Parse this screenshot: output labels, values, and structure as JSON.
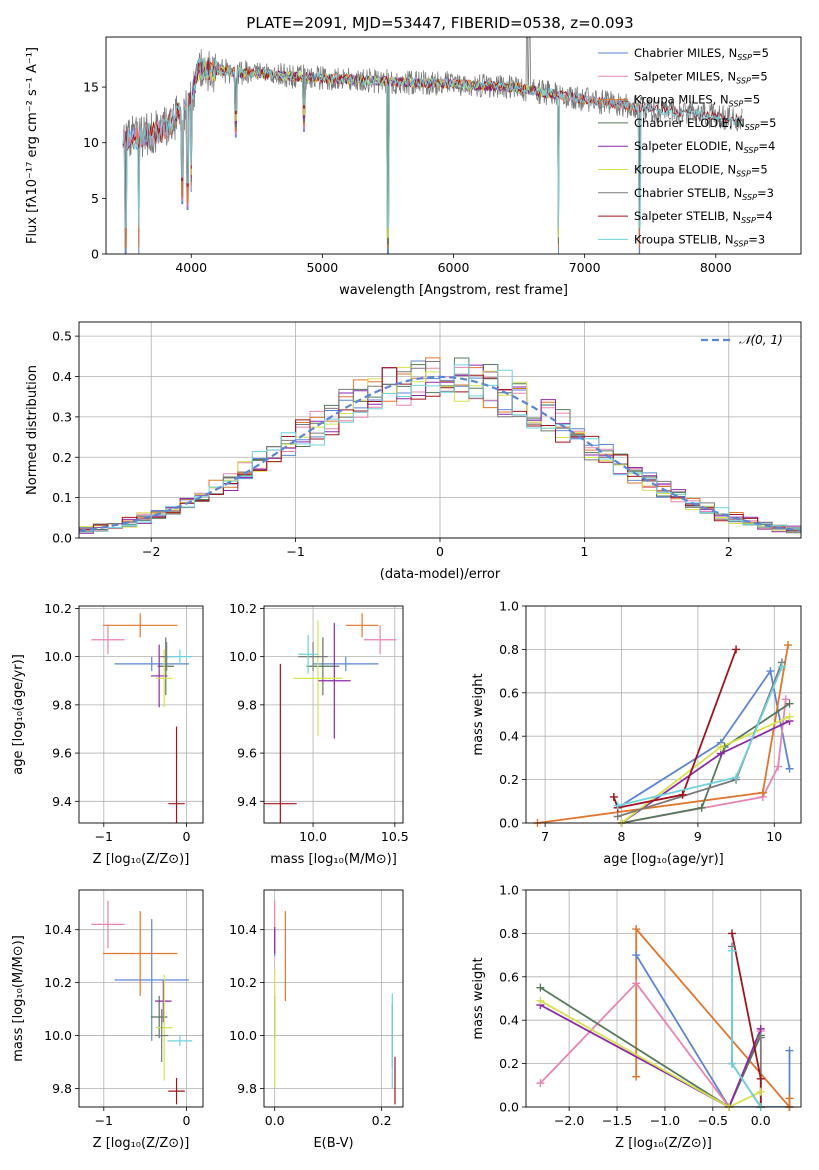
{
  "figure": {
    "title": "PLATE=2091, MJD=53447, FIBERID=0538, z=0.093"
  },
  "colors": {
    "Chabrier MILES": "#5b86d6",
    "Salpeter MILES": "#e983b3",
    "Kroupa MILES": "#e0762a",
    "Chabrier ELODIE": "#557a5c",
    "Salpeter ELODIE": "#8d2aa8",
    "Kroupa ELODIE": "#d5e24a",
    "Chabrier STELIB": "#7a7a7a",
    "Salpeter STELIB": "#a0141e",
    "Kroupa STELIB": "#6fd3de",
    "normal": "#5b86d6"
  },
  "chart_data": [
    {
      "id": "spectrum",
      "type": "line",
      "xlabel": "wavelength [Angstrom, rest frame]",
      "ylabel": "Flux [fλ10⁻¹⁷ erg cm⁻² s⁻¹ A⁻¹]",
      "xlim": [
        3350,
        8650
      ],
      "ylim": [
        0,
        19.5
      ],
      "xticks": [
        4000,
        5000,
        6000,
        7000,
        8000
      ],
      "yticks": [
        0,
        5,
        10,
        15
      ],
      "legend": [
        {
          "base": "Chabrier MILES, N",
          "sub": "SSP",
          "tail": "=5"
        },
        {
          "base": "Salpeter MILES, N",
          "sub": "SSP",
          "tail": "=5"
        },
        {
          "base": "Kroupa MILES, N",
          "sub": "SSP",
          "tail": "=5"
        },
        {
          "base": "Chabrier ELODIE, N",
          "sub": "SSP",
          "tail": "=5"
        },
        {
          "base": "Salpeter ELODIE, N",
          "sub": "SSP",
          "tail": "=4"
        },
        {
          "base": "Kroupa ELODIE, N",
          "sub": "SSP",
          "tail": "=5"
        },
        {
          "base": "Chabrier STELIB, N",
          "sub": "SSP",
          "tail": "=3"
        },
        {
          "base": "Salpeter STELIB, N",
          "sub": "SSP",
          "tail": "=4"
        },
        {
          "base": "Kroupa STELIB, N",
          "sub": "SSP",
          "tail": "=3"
        }
      ],
      "legend_position": "upper right",
      "continuum": [
        [
          3480,
          10.3
        ],
        [
          3600,
          10.5
        ],
        [
          3700,
          10.8
        ],
        [
          3800,
          11.2
        ],
        [
          3900,
          12.5
        ],
        [
          4000,
          13.8
        ],
        [
          4050,
          16.5
        ],
        [
          4100,
          16.6
        ],
        [
          4300,
          16.4
        ],
        [
          4500,
          16.2
        ],
        [
          5000,
          15.8
        ],
        [
          5500,
          15.5
        ],
        [
          6000,
          15.3
        ],
        [
          6500,
          14.9
        ],
        [
          7000,
          13.9
        ],
        [
          7500,
          13.0
        ],
        [
          8000,
          12.4
        ],
        [
          8200,
          12.0
        ]
      ],
      "series_ranges": [
        {
          "name": "Chabrier MILES",
          "x": [
            3480,
            7420
          ]
        },
        {
          "name": "Salpeter MILES",
          "x": [
            3480,
            7420
          ]
        },
        {
          "name": "Kroupa MILES",
          "x": [
            3480,
            7420
          ]
        },
        {
          "name": "Chabrier ELODIE",
          "x": [
            4000,
            6800
          ]
        },
        {
          "name": "Salpeter ELODIE",
          "x": [
            4000,
            6800
          ]
        },
        {
          "name": "Kroupa ELODIE",
          "x": [
            4000,
            6800
          ]
        },
        {
          "name": "Chabrier STELIB",
          "x": [
            3480,
            8200
          ]
        },
        {
          "name": "Salpeter STELIB",
          "x": [
            3480,
            8200
          ]
        },
        {
          "name": "Kroupa STELIB",
          "x": [
            3480,
            8200
          ]
        }
      ],
      "dips": [
        [
          3600,
          0
        ],
        [
          3930,
          4.5
        ],
        [
          3970,
          4.0
        ],
        [
          4000,
          5.6
        ],
        [
          4340,
          10.5
        ],
        [
          4860,
          11.0
        ],
        [
          5500,
          0
        ],
        [
          6800,
          0
        ],
        [
          7420,
          0
        ],
        [
          3500,
          0
        ]
      ]
    },
    {
      "id": "residuals",
      "type": "line",
      "xlabel": "(data-model)/error",
      "ylabel": "Normed distribution",
      "xlim": [
        -2.5,
        2.5
      ],
      "ylim": [
        0,
        0.535
      ],
      "xticks": [
        -2,
        -1,
        0,
        1,
        2
      ],
      "xtick_labels": [
        "−2",
        "−1",
        "0",
        "1",
        "2"
      ],
      "yticks": [
        0.0,
        0.1,
        0.2,
        0.3,
        0.4,
        0.5
      ],
      "legend": [
        "𝒩(0, 1)"
      ],
      "legend_position": "upper right",
      "grid": true,
      "bin_width": 0.1
    },
    {
      "id": "age_vs_Z",
      "type": "scatter",
      "xlabel": "Z [log₁₀(Z/Z⊙)]",
      "ylabel": "age  [log₁₀(age/yr)]",
      "xlim": [
        -1.3,
        0.2
      ],
      "ylim": [
        9.31,
        10.21
      ],
      "xticks": [
        -1,
        0
      ],
      "xtick_labels": [
        "−1",
        "0"
      ],
      "yticks": [
        9.4,
        9.6,
        9.8,
        10.0,
        10.2
      ],
      "points": [
        {
          "series": "Chabrier MILES",
          "x": -0.42,
          "y": 9.97,
          "xerr": 0.45,
          "yerr": 0.03
        },
        {
          "series": "Salpeter MILES",
          "x": -0.95,
          "y": 10.07,
          "xerr": 0.2,
          "yerr": 0.06
        },
        {
          "series": "Kroupa MILES",
          "x": -0.56,
          "y": 10.13,
          "xerr": 0.45,
          "yerr": 0.05
        },
        {
          "series": "Chabrier ELODIE",
          "x": -0.25,
          "y": 9.96,
          "xerr": 0.1,
          "yerr": 0.12
        },
        {
          "series": "Salpeter ELODIE",
          "x": -0.33,
          "y": 9.92,
          "xerr": 0.1,
          "yerr": 0.13
        },
        {
          "series": "Kroupa ELODIE",
          "x": -0.27,
          "y": 9.91,
          "xerr": 0.1,
          "yerr": 0.12
        },
        {
          "series": "Chabrier STELIB",
          "x": -0.24,
          "y": 10.0,
          "xerr": 0.08,
          "yerr": 0.06
        },
        {
          "series": "Salpeter STELIB",
          "x": -0.12,
          "y": 9.39,
          "xerr": 0.1,
          "yerr": 0.32
        },
        {
          "series": "Kroupa STELIB",
          "x": -0.08,
          "y": 10.0,
          "xerr": 0.15,
          "yerr": 0.03
        }
      ]
    },
    {
      "id": "age_vs_mass",
      "type": "scatter",
      "xlabel": "mass [log₁₀(M/M⊙)]",
      "xlim": [
        9.7,
        10.55
      ],
      "ylim": [
        9.31,
        10.21
      ],
      "xticks": [
        10.0,
        10.5
      ],
      "yticks": [
        9.4,
        9.6,
        9.8,
        10.0,
        10.2
      ],
      "points": [
        {
          "series": "Chabrier MILES",
          "x": 10.2,
          "y": 9.97,
          "xerr": 0.2,
          "yerr": 0.03
        },
        {
          "series": "Salpeter MILES",
          "x": 10.41,
          "y": 10.07,
          "xerr": 0.1,
          "yerr": 0.06
        },
        {
          "series": "Kroupa MILES",
          "x": 10.3,
          "y": 10.13,
          "xerr": 0.1,
          "yerr": 0.05
        },
        {
          "series": "Chabrier ELODIE",
          "x": 10.06,
          "y": 9.96,
          "xerr": 0.1,
          "yerr": 0.12
        },
        {
          "series": "Salpeter ELODIE",
          "x": 10.13,
          "y": 9.9,
          "xerr": 0.1,
          "yerr": 0.24
        },
        {
          "series": "Kroupa ELODIE",
          "x": 10.03,
          "y": 9.91,
          "xerr": 0.15,
          "yerr": 0.24
        },
        {
          "series": "Chabrier STELIB",
          "x": 10.0,
          "y": 10.0,
          "xerr": 0.09,
          "yerr": 0.06
        },
        {
          "series": "Salpeter STELIB",
          "x": 9.8,
          "y": 9.39,
          "xerr": 0.1,
          "yerr": 0.58
        },
        {
          "series": "Kroupa STELIB",
          "x": 9.97,
          "y": 10.01,
          "xerr": 0.06,
          "yerr": 0.08
        }
      ]
    },
    {
      "id": "weight_vs_age",
      "type": "line",
      "xlabel": "age  [log₁₀(age/yr)]",
      "ylabel": "mass weight",
      "xlim": [
        6.75,
        10.35
      ],
      "ylim": [
        0,
        1.0
      ],
      "xticks": [
        7,
        8,
        9,
        10
      ],
      "yticks": [
        0.0,
        0.2,
        0.4,
        0.6,
        0.8,
        1.0
      ],
      "grid": true,
      "series": [
        {
          "name": "Chabrier MILES",
          "x": [
            7.95,
            9.3,
            9.95,
            10.2
          ],
          "y": [
            0.07,
            0.37,
            0.7,
            0.25
          ]
        },
        {
          "name": "Salpeter MILES",
          "x": [
            8.0,
            9.85,
            10.05,
            10.15
          ],
          "y": [
            0.0,
            0.12,
            0.26,
            0.57
          ]
        },
        {
          "name": "Kroupa MILES",
          "x": [
            6.9,
            9.85,
            10.18
          ],
          "y": [
            0.0,
            0.14,
            0.82
          ]
        },
        {
          "name": "Chabrier ELODIE",
          "x": [
            8.0,
            9.05,
            9.35,
            10.2
          ],
          "y": [
            0.0,
            0.07,
            0.35,
            0.55
          ]
        },
        {
          "name": "Salpeter ELODIE",
          "x": [
            8.0,
            9.3,
            10.2
          ],
          "y": [
            0.0,
            0.32,
            0.47
          ]
        },
        {
          "name": "Kroupa ELODIE",
          "x": [
            8.0,
            9.3,
            10.2
          ],
          "y": [
            0.0,
            0.35,
            0.49
          ]
        },
        {
          "name": "Chabrier STELIB",
          "x": [
            7.95,
            9.5,
            10.1
          ],
          "y": [
            0.03,
            0.2,
            0.74
          ]
        },
        {
          "name": "Salpeter STELIB",
          "x": [
            7.9,
            7.95,
            8.8,
            9.5
          ],
          "y": [
            0.12,
            0.07,
            0.13,
            0.8
          ]
        },
        {
          "name": "Kroupa STELIB",
          "x": [
            7.95,
            9.5,
            10.1
          ],
          "y": [
            0.08,
            0.21,
            0.72
          ]
        }
      ]
    },
    {
      "id": "mass_vs_Z",
      "type": "scatter",
      "xlabel": "Z [log₁₀(Z/Z⊙)]",
      "ylabel": "mass [log₁₀(M/M⊙)]",
      "xlim": [
        -1.3,
        0.2
      ],
      "ylim": [
        9.73,
        10.55
      ],
      "xticks": [
        -1,
        0
      ],
      "xtick_labels": [
        "−1",
        "0"
      ],
      "yticks": [
        9.8,
        10.0,
        10.2,
        10.4
      ],
      "points": [
        {
          "series": "Chabrier MILES",
          "x": -0.42,
          "y": 10.21,
          "xerr": 0.45,
          "yerr": 0.23
        },
        {
          "series": "Salpeter MILES",
          "x": -0.95,
          "y": 10.42,
          "xerr": 0.2,
          "yerr": 0.09
        },
        {
          "series": "Kroupa MILES",
          "x": -0.56,
          "y": 10.31,
          "xerr": 0.45,
          "yerr": 0.16
        },
        {
          "series": "Chabrier ELODIE",
          "x": -0.33,
          "y": 10.07,
          "xerr": 0.1,
          "yerr": 0.08
        },
        {
          "series": "Salpeter ELODIE",
          "x": -0.28,
          "y": 10.13,
          "xerr": 0.1,
          "yerr": 0.08
        },
        {
          "series": "Kroupa ELODIE",
          "x": -0.27,
          "y": 10.03,
          "xerr": 0.1,
          "yerr": 0.2
        },
        {
          "series": "Chabrier STELIB",
          "x": -0.3,
          "y": 10.0,
          "xerr": 0.08,
          "yerr": 0.1
        },
        {
          "series": "Salpeter STELIB",
          "x": -0.12,
          "y": 9.79,
          "xerr": 0.1,
          "yerr": 0.05
        },
        {
          "series": "Kroupa STELIB",
          "x": -0.08,
          "y": 9.98,
          "xerr": 0.15,
          "yerr": 0.02
        }
      ]
    },
    {
      "id": "mass_vs_ebv",
      "type": "scatter",
      "xlabel": "E(B-V)",
      "xlim": [
        -0.02,
        0.24
      ],
      "ylim": [
        9.73,
        10.55
      ],
      "xticks": [
        0.0,
        0.2
      ],
      "yticks": [
        9.8,
        10.0,
        10.2,
        10.4
      ],
      "points": [
        {
          "series": "Chabrier MILES",
          "x": 0.0,
          "y": 10.35,
          "xerr": 0,
          "yerr": 0.05
        },
        {
          "series": "Salpeter MILES",
          "x": 0.0,
          "y": 10.42,
          "xerr": 0,
          "yerr": 0.09
        },
        {
          "series": "Kroupa MILES",
          "x": 0.02,
          "y": 10.3,
          "xerr": 0,
          "yerr": 0.17
        },
        {
          "series": "Chabrier ELODIE",
          "x": 0.0,
          "y": 10.07,
          "xerr": 0,
          "yerr": 0.08
        },
        {
          "series": "Salpeter ELODIE",
          "x": 0.0,
          "y": 10.36,
          "xerr": 0,
          "yerr": 0.05
        },
        {
          "series": "Kroupa ELODIE",
          "x": 0.0,
          "y": 10.03,
          "xerr": 0,
          "yerr": 0.22
        },
        {
          "series": "Chabrier STELIB",
          "x": 0.22,
          "y": 10.0,
          "xerr": 0,
          "yerr": 0.12
        },
        {
          "series": "Salpeter STELIB",
          "x": 0.225,
          "y": 9.83,
          "xerr": 0,
          "yerr": 0.09
        },
        {
          "series": "Kroupa STELIB",
          "x": 0.22,
          "y": 9.98,
          "xerr": 0,
          "yerr": 0.18
        }
      ]
    },
    {
      "id": "weight_vs_Z",
      "type": "line",
      "xlabel": "Z [log₁₀(Z/Z⊙)]",
      "ylabel": "mass weight",
      "xlim": [
        -2.45,
        0.42
      ],
      "ylim": [
        0,
        1.0
      ],
      "xticks": [
        -2.0,
        -1.5,
        -1.0,
        -0.5,
        0.0
      ],
      "xtick_labels": [
        "−2.0",
        "−1.5",
        "−1.0",
        "−0.5",
        "0.0"
      ],
      "yticks": [
        0.0,
        0.2,
        0.4,
        0.6,
        0.8,
        1.0
      ],
      "grid": true,
      "series": [
        {
          "name": "Chabrier MILES",
          "x": [
            -1.3,
            -0.33,
            0.3,
            0.3
          ],
          "y": [
            0.7,
            0.0,
            0.0,
            0.26
          ]
        },
        {
          "name": "Salpeter MILES",
          "x": [
            -2.3,
            -1.3,
            -0.33,
            0.0
          ],
          "y": [
            0.11,
            0.57,
            0.0,
            0.35
          ]
        },
        {
          "name": "Kroupa MILES",
          "x": [
            -1.3,
            -1.3,
            0.3,
            0.3
          ],
          "y": [
            0.14,
            0.82,
            0.0,
            0.04
          ]
        },
        {
          "name": "Chabrier ELODIE",
          "x": [
            -2.3,
            -0.33,
            0.0
          ],
          "y": [
            0.55,
            0.0,
            0.33
          ]
        },
        {
          "name": "Salpeter ELODIE",
          "x": [
            -2.3,
            -0.33,
            0.0
          ],
          "y": [
            0.47,
            0.0,
            0.36
          ]
        },
        {
          "name": "Kroupa ELODIE",
          "x": [
            -2.3,
            -0.33,
            0.0
          ],
          "y": [
            0.49,
            0.0,
            0.07
          ]
        },
        {
          "name": "Chabrier STELIB",
          "x": [
            -0.3,
            -0.3,
            0.0,
            0.0
          ],
          "y": [
            0.74,
            0.2,
            0.0,
            0.32
          ]
        },
        {
          "name": "Salpeter STELIB",
          "x": [
            -0.3,
            0.0,
            0.0
          ],
          "y": [
            0.8,
            0.13,
            0.0
          ]
        },
        {
          "name": "Kroupa STELIB",
          "x": [
            -0.3,
            -0.3,
            0.0
          ],
          "y": [
            0.72,
            0.2,
            0.0
          ]
        }
      ]
    }
  ]
}
